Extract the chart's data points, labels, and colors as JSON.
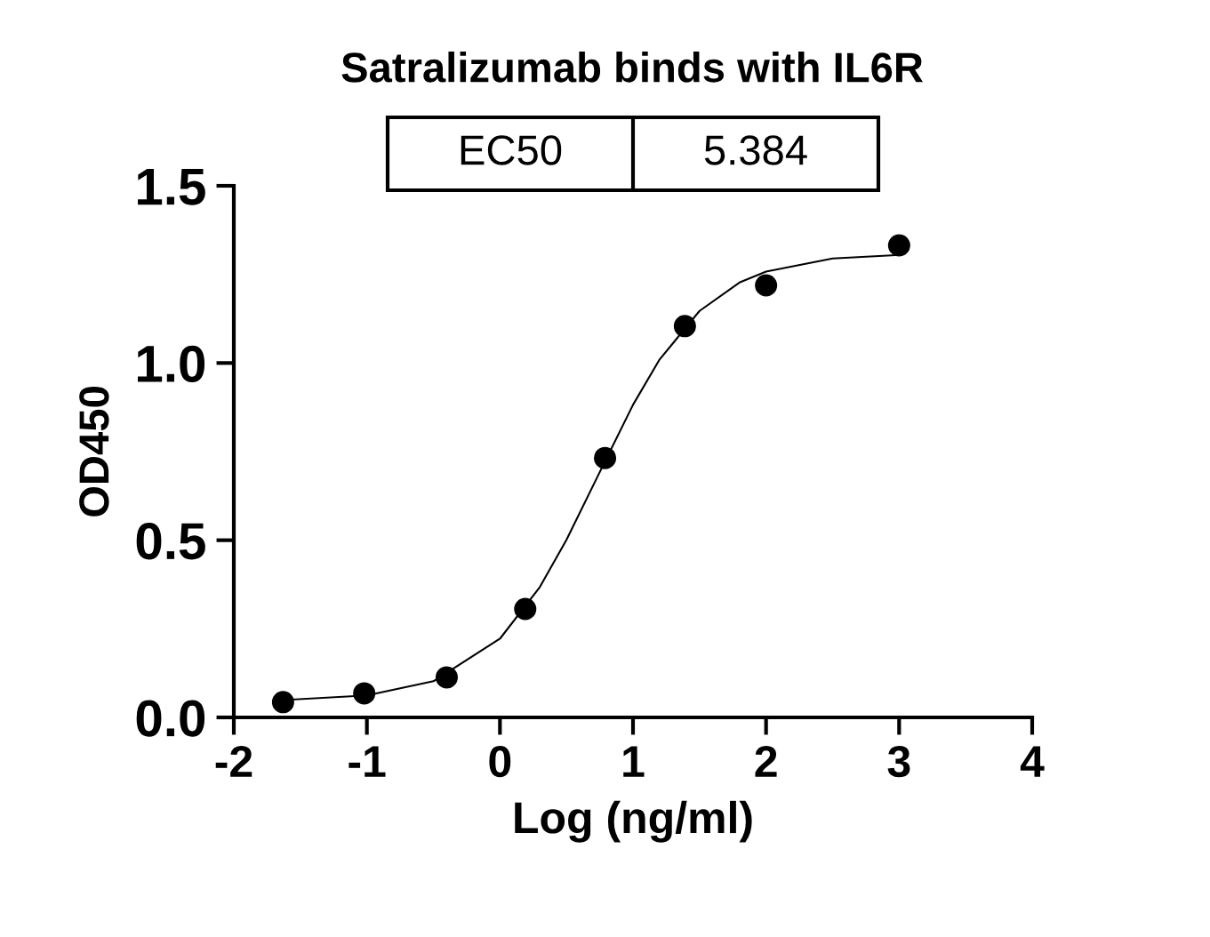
{
  "chart_data": {
    "type": "scatter",
    "title": "Satralizumab binds with IL6R",
    "xlabel": "Log (ng/ml)",
    "ylabel": "OD450",
    "annotations": [
      "EC50",
      "5.384"
    ],
    "series": [
      {
        "color": "#000000",
        "marker": "circle",
        "x": [
          -1.63,
          -1.02,
          -0.4,
          0.19,
          0.79,
          1.39,
          2.0,
          3.0
        ],
        "values": [
          0.043,
          0.068,
          0.113,
          0.306,
          0.732,
          1.104,
          1.219,
          1.332
        ]
      },
      {
        "type": "line",
        "color": "#000000",
        "marker": "none",
        "line_style": "solid",
        "x": [
          -1.63,
          -1.0,
          -0.5,
          0,
          0.3,
          0.5,
          0.73,
          1.0,
          1.2,
          1.5,
          1.8,
          2.0,
          2.5,
          3.0
        ],
        "values": [
          0.049,
          0.062,
          0.102,
          0.222,
          0.368,
          0.501,
          0.677,
          0.882,
          1.01,
          1.147,
          1.227,
          1.258,
          1.295,
          1.305
        ]
      }
    ],
    "xlim": [
      -2,
      4
    ],
    "xticks": [
      -2,
      -1,
      0,
      1,
      2,
      3,
      4
    ],
    "ylim": [
      0,
      1.5
    ],
    "yticks": [
      {
        "value": 0,
        "label": "0.0"
      },
      {
        "value": 0.5,
        "label": "0.5"
      },
      {
        "value": 1.0,
        "label": "1.0"
      },
      {
        "value": 1.5,
        "label": "1.5"
      }
    ],
    "grid": false,
    "legend": false
  }
}
